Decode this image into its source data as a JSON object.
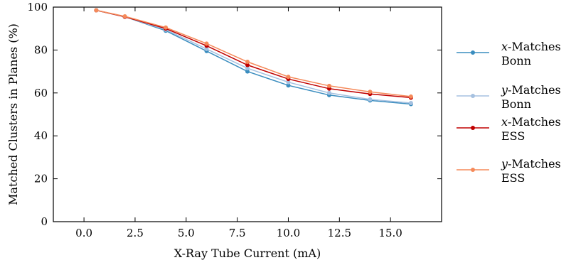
{
  "chart_data": {
    "type": "line",
    "xlabel": "X-Ray Tube Current (mA)",
    "ylabel": "Matched Clusters in Planes (%)",
    "xlim": [
      -1.5,
      17.5
    ],
    "ylim": [
      0,
      100
    ],
    "xticks": [
      0,
      2.5,
      5,
      7.5,
      10,
      12.5,
      15
    ],
    "xtick_labels": [
      "0.0",
      "2.5",
      "5.0",
      "7.5",
      "10.0",
      "12.5",
      "15.0"
    ],
    "yticks": [
      0,
      20,
      40,
      60,
      80,
      100
    ],
    "ytick_labels": [
      "0",
      "20",
      "40",
      "60",
      "80",
      "100"
    ],
    "grid": false,
    "legend_position": "right",
    "x": [
      0.6,
      2,
      4,
      6,
      8,
      10,
      12,
      14,
      16
    ],
    "series": [
      {
        "name_prefix": "x",
        "name_rest": "-Matches",
        "name_line2": "Bonn",
        "color": "#3a8dbf",
        "values": [
          98.5,
          95.5,
          89,
          79.5,
          70,
          63.5,
          59,
          56.5,
          54.8
        ]
      },
      {
        "name_prefix": "y",
        "name_rest": "-Matches",
        "name_line2": "Bonn",
        "color": "#a6c1e0",
        "values": [
          98.5,
          95.5,
          89.5,
          80.5,
          71.5,
          65,
          60,
          57,
          55.3
        ]
      },
      {
        "name_prefix": "x",
        "name_rest": "-Matches",
        "name_line2": "ESS",
        "color": "#c00000",
        "values": [
          98.5,
          95.5,
          90,
          82,
          73,
          66.5,
          62,
          59.5,
          57.8
        ]
      },
      {
        "name_prefix": "y",
        "name_rest": "-Matches",
        "name_line2": "ESS",
        "color": "#f58a5a",
        "values": [
          98.5,
          95.7,
          90.5,
          83,
          74.5,
          67.5,
          63.3,
          60.5,
          58.3
        ]
      }
    ]
  }
}
